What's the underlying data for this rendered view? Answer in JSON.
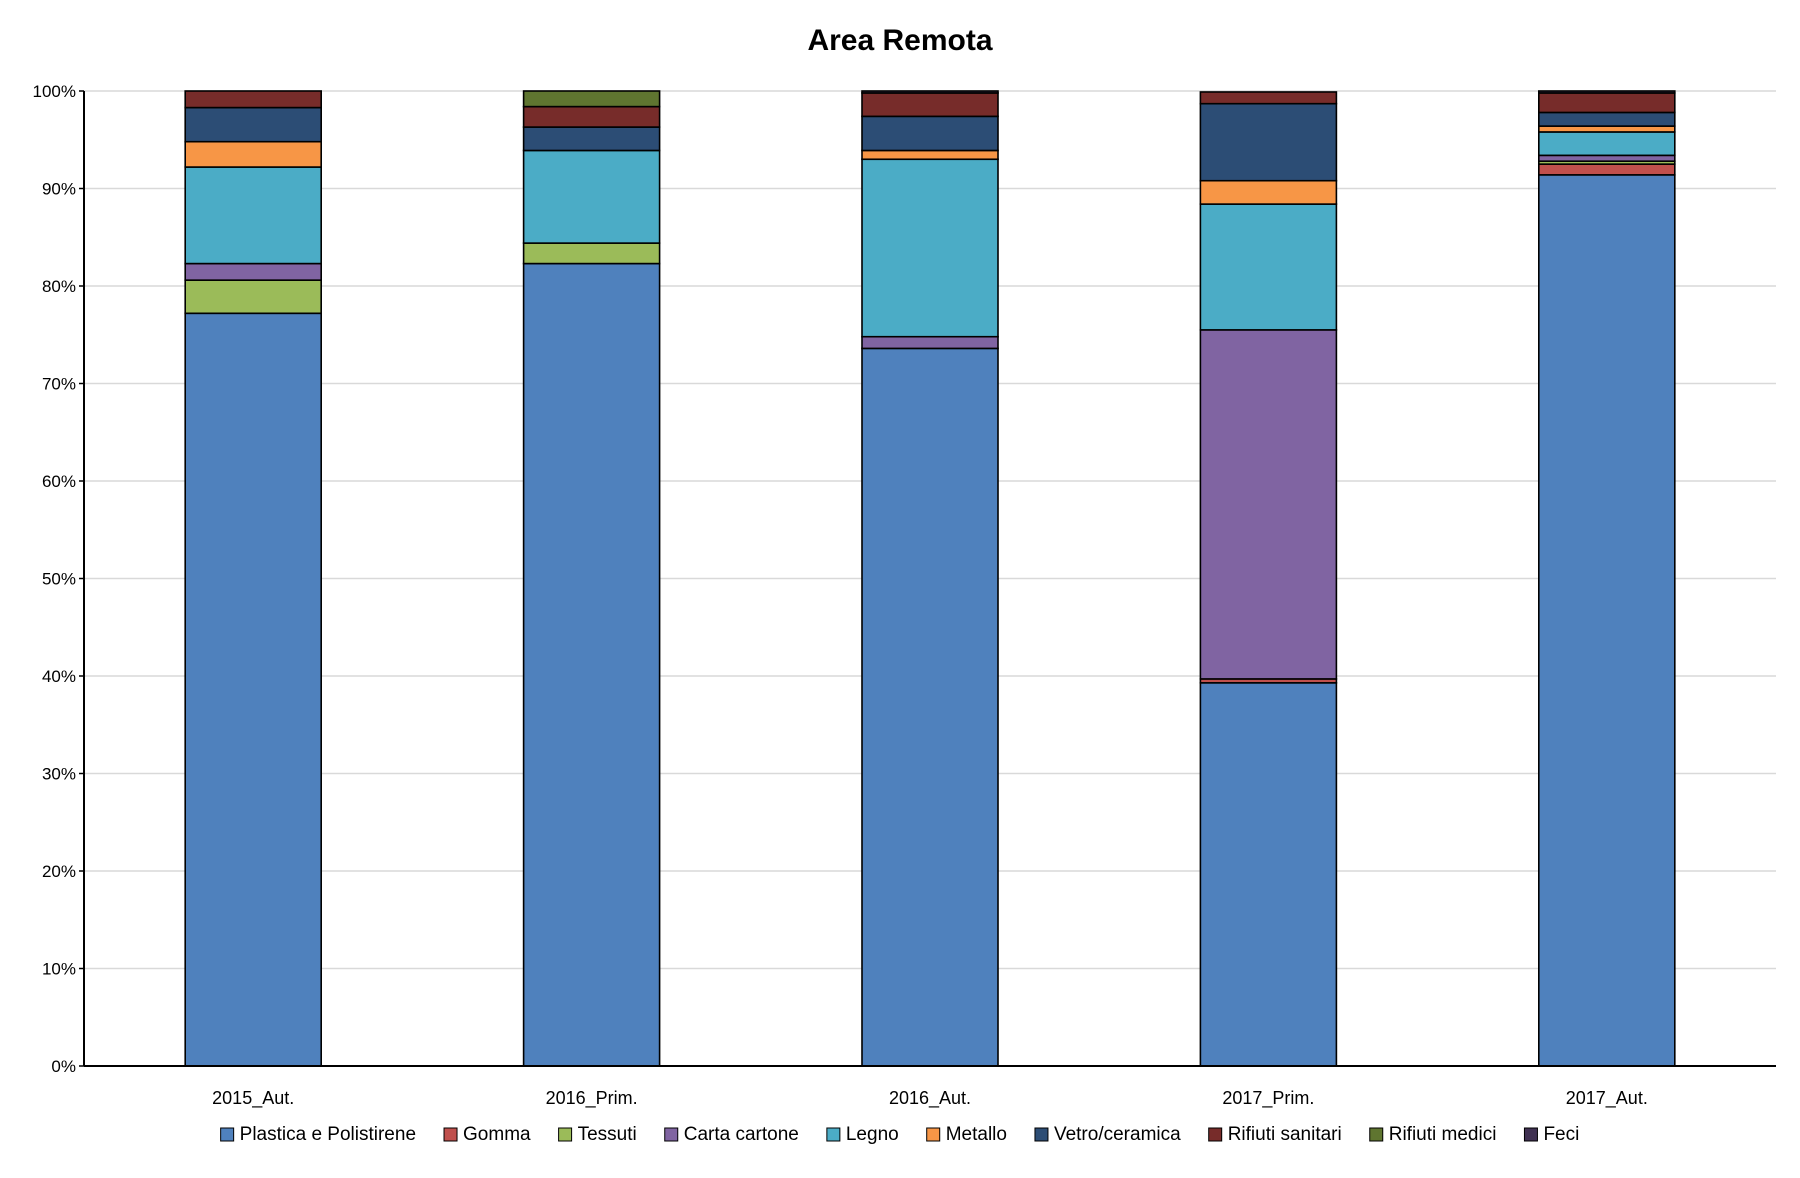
{
  "chart_data": {
    "type": "bar",
    "stacked": true,
    "percent": true,
    "title": "Area Remota",
    "xlabel": "",
    "ylabel": "",
    "ylim": [
      0,
      100
    ],
    "y_ticks": [
      0,
      10,
      20,
      30,
      40,
      50,
      60,
      70,
      80,
      90,
      100
    ],
    "y_tick_labels": [
      "0%",
      "10%",
      "20%",
      "30%",
      "40%",
      "50%",
      "60%",
      "70%",
      "80%",
      "90%",
      "100%"
    ],
    "grid": true,
    "legend_position": "bottom",
    "categories": [
      "2015_Aut.",
      "2016_Prim.",
      "2016_Aut.",
      "2017_Prim.",
      "2017_Aut."
    ],
    "series": [
      {
        "name": "Plastica e Polistirene",
        "color": "#4f81bd",
        "values": [
          77.2,
          82.3,
          73.6,
          39.3,
          91.4
        ]
      },
      {
        "name": "Gomma",
        "color": "#c0504d",
        "values": [
          0.0,
          0.0,
          0.0,
          0.4,
          1.1
        ]
      },
      {
        "name": "Tessuti",
        "color": "#9bbb59",
        "values": [
          3.4,
          2.1,
          0.0,
          0.0,
          0.3
        ]
      },
      {
        "name": "Carta cartone",
        "color": "#8064a2",
        "values": [
          1.7,
          0.0,
          1.2,
          35.8,
          0.6
        ]
      },
      {
        "name": "Legno",
        "color": "#4bacc6",
        "values": [
          9.9,
          9.5,
          18.2,
          12.9,
          2.4
        ]
      },
      {
        "name": "Metallo",
        "color": "#f79646",
        "values": [
          2.6,
          0.0,
          0.9,
          2.4,
          0.6
        ]
      },
      {
        "name": "Vetro/ceramica",
        "color": "#2c4d75",
        "values": [
          3.5,
          2.4,
          3.5,
          7.9,
          1.4
        ]
      },
      {
        "name": "Rifiuti sanitari",
        "color": "#772c2a",
        "values": [
          1.7,
          2.1,
          2.4,
          1.2,
          2.0
        ]
      },
      {
        "name": "Rifiuti medici",
        "color": "#5f7530",
        "values": [
          0.0,
          1.6,
          0.0,
          0.0,
          0.0
        ]
      },
      {
        "name": "Feci",
        "color": "#403152",
        "values": [
          0.0,
          0.0,
          0.2,
          0.0,
          0.2
        ]
      }
    ]
  }
}
